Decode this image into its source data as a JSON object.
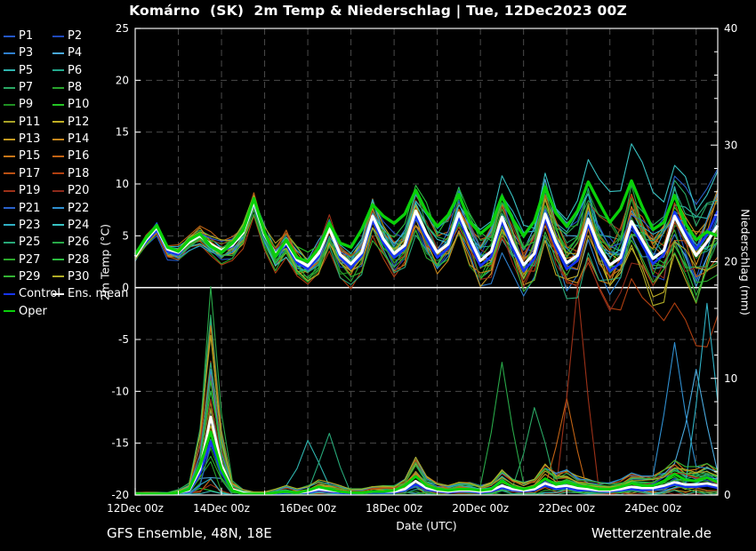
{
  "title": "Komárno  (SK)  2m Temp & Niederschlag | Tue, 12Dec2023 00Z",
  "footer": {
    "left": "GFS Ensemble, 48N, 18E",
    "right": "Wetterzentrale.de"
  },
  "legend": {
    "special": [
      {
        "label": "Control",
        "key": "control"
      },
      {
        "label": "Ens. mean",
        "key": "mean"
      },
      {
        "label": "Oper",
        "key": "oper"
      }
    ]
  },
  "chart_data": {
    "type": "line",
    "title": "Komárno  (SK)  2m Temp & Niederschlag | Tue, 12Dec2023 00Z",
    "xlabel": "Date (UTC)",
    "ylabel_left": "2m Temp (°C)",
    "ylabel_right": "Niederschlag (mm)",
    "hours_total": 324,
    "step_hours": 6,
    "x_ticks": [
      {
        "hour": 0,
        "label": "12Dec 00z"
      },
      {
        "hour": 48,
        "label": "14Dec 00z"
      },
      {
        "hour": 96,
        "label": "16Dec 00z"
      },
      {
        "hour": 144,
        "label": "18Dec 00z"
      },
      {
        "hour": 192,
        "label": "20Dec 00z"
      },
      {
        "hour": 240,
        "label": "22Dec 00z"
      },
      {
        "hour": 288,
        "label": "24Dec 00z"
      }
    ],
    "temp_axis": {
      "min": -20,
      "max": 25,
      "ticks": [
        25,
        20,
        15,
        10,
        5,
        0,
        -5,
        -10,
        -15,
        -20
      ]
    },
    "precip_axis": {
      "min": 0,
      "max": 40,
      "ticks": [
        40,
        30,
        20,
        10,
        0
      ],
      "minor_step": 2
    },
    "grid": {
      "v_step_hours": 24,
      "h_step_temp": 5
    },
    "colors": {
      "background": "#000000",
      "text": "#ffffff",
      "grid": "#4a4a4a",
      "border": "#dedede",
      "zero_line": "#ffffff",
      "control": "#1635f0",
      "mean": "#ffffff",
      "oper": "#0ad00a"
    },
    "member_labels": [
      "P1",
      "P2",
      "P3",
      "P4",
      "P5",
      "P6",
      "P7",
      "P8",
      "P9",
      "P10",
      "P11",
      "P12",
      "P13",
      "P14",
      "P15",
      "P16",
      "P17",
      "P18",
      "P19",
      "P20",
      "P21",
      "P22",
      "P23",
      "P24",
      "P25",
      "P26",
      "P27",
      "P28",
      "P29",
      "P30"
    ],
    "member_colors": [
      "#2457c8",
      "#1f49bb",
      "#2f80cf",
      "#49a8dc",
      "#2fb4ae",
      "#23a88c",
      "#2aa864",
      "#28a42d",
      "#1f8f22",
      "#24c524",
      "#a8a226",
      "#c0ae24",
      "#c49a20",
      "#c8871d",
      "#c97618",
      "#c26314",
      "#bb5013",
      "#b03f10",
      "#9d3118",
      "#8c2a1b",
      "#2a62cc",
      "#2f8fd0",
      "#2fb0c4",
      "#38c2c2",
      "#27a878",
      "#28a848",
      "#2ba82b",
      "#2bbc3f",
      "#34b434",
      "#b0ac26"
    ],
    "members": {
      "count": 30,
      "seed": 20231212,
      "spread_start": 0.65,
      "spread_end": 4.15,
      "temp_adjust": [
        {
          "member": 17,
          "from_hour": 216,
          "delta_at_end": -7.5
        },
        {
          "member": 23,
          "from_hour": 168,
          "delta_at_end": 5
        }
      ],
      "precip_outliers": [
        {
          "member": 18,
          "hour": 246,
          "peak_mm": 17.5
        },
        {
          "member": 15,
          "hour": 240,
          "peak_mm": 8
        },
        {
          "member": 22,
          "hour": 318,
          "peak_mm": 15.5
        },
        {
          "member": 21,
          "hour": 300,
          "peak_mm": 10.5
        },
        {
          "member": 25,
          "hour": 204,
          "peak_mm": 9.5
        },
        {
          "member": 6,
          "hour": 222,
          "peak_mm": 7
        },
        {
          "member": 24,
          "hour": 108,
          "peak_mm": 5
        },
        {
          "member": 3,
          "hour": 312,
          "peak_mm": 9
        },
        {
          "member": 4,
          "hour": 96,
          "peak_mm": 4
        }
      ]
    },
    "series": {
      "ens_mean_temp": [
        3.0,
        4.6,
        5.8,
        3.7,
        3.4,
        4.4,
        5.0,
        4.2,
        3.6,
        4.1,
        5.3,
        8.3,
        5.1,
        3.2,
        4.4,
        2.7,
        2.1,
        3.3,
        5.7,
        3.2,
        2.3,
        3.4,
        6.9,
        4.7,
        3.3,
        4.1,
        7.4,
        5.2,
        3.4,
        4.2,
        7.2,
        4.8,
        2.6,
        3.5,
        6.8,
        4.3,
        2.2,
        3.3,
        7.1,
        4.4,
        2.4,
        3.1,
        6.6,
        3.9,
        2.2,
        2.9,
        6.4,
        4.6,
        2.8,
        3.6,
        6.9,
        4.9,
        3.1,
        4.4,
        6.0
      ],
      "control_temp": [
        3.1,
        4.4,
        5.6,
        3.5,
        3.2,
        4.5,
        5.2,
        4.0,
        3.5,
        4.0,
        5.5,
        8.6,
        5.0,
        3.0,
        4.2,
        2.4,
        1.8,
        3.0,
        5.9,
        2.9,
        1.9,
        3.1,
        6.5,
        4.3,
        2.9,
        3.8,
        7.0,
        4.7,
        2.9,
        3.8,
        6.8,
        4.3,
        2.1,
        3.0,
        6.4,
        3.8,
        1.6,
        2.8,
        6.7,
        3.9,
        1.8,
        2.6,
        6.2,
        3.4,
        1.6,
        2.4,
        6.1,
        4.1,
        2.3,
        3.2,
        7.3,
        5.4,
        3.7,
        5.1,
        7.4
      ],
      "oper_temp": [
        3.2,
        4.8,
        6.0,
        3.9,
        3.5,
        4.6,
        5.2,
        4.0,
        3.4,
        4.3,
        5.5,
        8.6,
        5.3,
        3.0,
        4.6,
        2.9,
        2.5,
        3.8,
        6.2,
        4.3,
        3.9,
        5.6,
        8.0,
        6.9,
        6.2,
        7.1,
        9.4,
        7.3,
        5.9,
        7.0,
        9.0,
        6.4,
        5.2,
        6.1,
        8.8,
        6.6,
        5.0,
        6.4,
        9.7,
        7.2,
        5.9,
        7.4,
        10.2,
        8.2,
        6.3,
        7.6,
        10.3,
        7.8,
        5.6,
        6.3,
        8.9,
        6.2,
        4.6,
        5.4,
        5.0
      ],
      "ens_mean_precip": [
        0.1,
        0.1,
        0.1,
        0.1,
        0.2,
        0.4,
        2.2,
        6.7,
        2.6,
        0.5,
        0.2,
        0.1,
        0.1,
        0.2,
        0.3,
        0.2,
        0.3,
        0.5,
        0.4,
        0.3,
        0.2,
        0.2,
        0.3,
        0.3,
        0.3,
        0.5,
        1.2,
        0.6,
        0.4,
        0.3,
        0.4,
        0.4,
        0.3,
        0.4,
        0.8,
        0.5,
        0.4,
        0.5,
        1.0,
        0.7,
        0.8,
        0.6,
        0.5,
        0.4,
        0.4,
        0.5,
        0.7,
        0.6,
        0.6,
        0.8,
        1.1,
        0.9,
        0.9,
        1.0,
        0.8
      ],
      "control_precip": [
        0.1,
        0.1,
        0.1,
        0.1,
        0.2,
        0.3,
        1.8,
        4.6,
        1.9,
        0.4,
        0.1,
        0.1,
        0.1,
        0.1,
        0.2,
        0.2,
        0.2,
        0.4,
        0.3,
        0.2,
        0.1,
        0.2,
        0.2,
        0.2,
        0.2,
        0.4,
        0.9,
        0.5,
        0.3,
        0.2,
        0.3,
        0.3,
        0.2,
        0.3,
        0.6,
        0.4,
        0.3,
        0.4,
        0.8,
        0.5,
        0.6,
        0.4,
        0.4,
        0.3,
        0.3,
        0.4,
        0.5,
        0.4,
        0.5,
        0.6,
        0.9,
        0.7,
        0.7,
        0.8,
        0.6
      ],
      "oper_precip": [
        0.1,
        0.1,
        0.1,
        0.1,
        0.2,
        0.5,
        2.5,
        5.4,
        2.2,
        0.4,
        0.1,
        0.1,
        0.1,
        0.2,
        0.3,
        0.2,
        0.4,
        0.7,
        0.5,
        0.3,
        0.2,
        0.2,
        0.3,
        0.3,
        0.4,
        0.8,
        1.6,
        0.8,
        0.5,
        0.4,
        0.5,
        0.5,
        0.4,
        0.5,
        1.2,
        0.7,
        0.5,
        0.7,
        1.4,
        0.9,
        1.1,
        0.8,
        0.7,
        0.5,
        0.5,
        0.7,
        1.0,
        0.8,
        0.8,
        1.2,
        1.8,
        1.3,
        1.2,
        1.5,
        1.1
      ]
    }
  }
}
